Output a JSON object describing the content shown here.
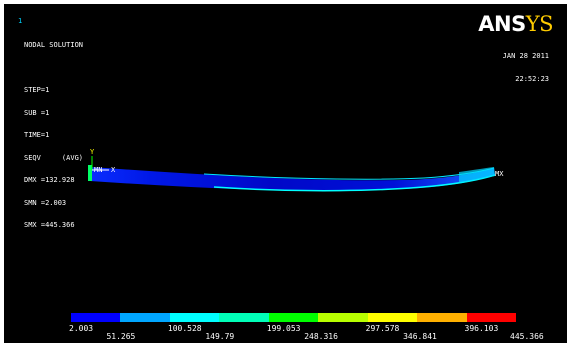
{
  "window_number": "1",
  "logo": {
    "main": "ANS",
    "accent": "YS"
  },
  "info_lines": [
    "NODAL SOLUTION",
    "",
    "STEP=1",
    "SUB =1",
    "TIME=1",
    "SEQV     (AVG)",
    "DMX =132.928",
    "SMN =2.003",
    "SMX =445.366"
  ],
  "date": "JAN 28 2011",
  "time": "22:52:23",
  "markers": {
    "axis_y": "Y",
    "axis_x": "X",
    "min_label": "MN",
    "max_label": "MX"
  },
  "legend": {
    "colors": [
      "#0000ff",
      "#00a6ff",
      "#00ffff",
      "#00ffb8",
      "#00ff00",
      "#b8ff00",
      "#ffff00",
      "#ffb000",
      "#ff0000"
    ],
    "top_ticks": [
      "2.003",
      "100.528",
      "199.053",
      "297.578",
      "396.103"
    ],
    "bottom_ticks": [
      "51.265",
      "149.79",
      "248.316",
      "346.841",
      "445.366"
    ]
  },
  "colors": {
    "background": "#000000",
    "beam_core": "#0008d8",
    "beam_edge": "#00ffff"
  }
}
